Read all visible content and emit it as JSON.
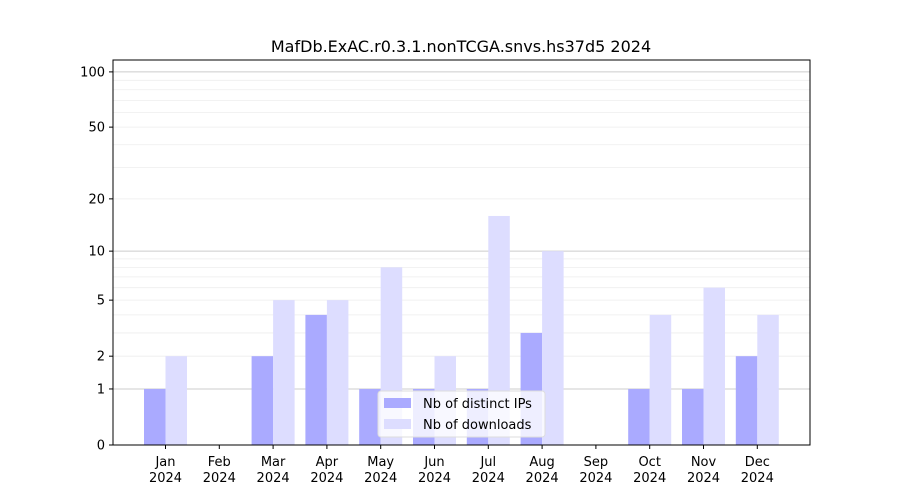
{
  "chart_data": {
    "type": "bar",
    "title": "MafDb.ExAC.r0.3.1.nonTCGA.snvs.hs37d5 2024",
    "categories": [
      "Jan\n2024",
      "Feb\n2024",
      "Mar\n2024",
      "Apr\n2024",
      "May\n2024",
      "Jun\n2024",
      "Jul\n2024",
      "Aug\n2024",
      "Sep\n2024",
      "Oct\n2024",
      "Nov\n2024",
      "Dec\n2024"
    ],
    "series": [
      {
        "name": "Nb of distinct IPs",
        "color": "#aaaaff",
        "values": [
          1,
          0,
          2,
          4,
          1,
          1,
          1,
          3,
          0,
          1,
          1,
          2
        ]
      },
      {
        "name": "Nb of downloads",
        "color": "#ddddff",
        "values": [
          2,
          0,
          5,
          5,
          8,
          2,
          16,
          10,
          0,
          4,
          6,
          4
        ]
      }
    ],
    "y_scale": "symlog",
    "y_ticks": [
      0,
      1,
      2,
      5,
      10,
      20,
      50,
      100
    ],
    "ylim": [
      0,
      116
    ],
    "grid": true,
    "legend_placement": "lower-center",
    "xlabel": "",
    "ylabel": ""
  }
}
